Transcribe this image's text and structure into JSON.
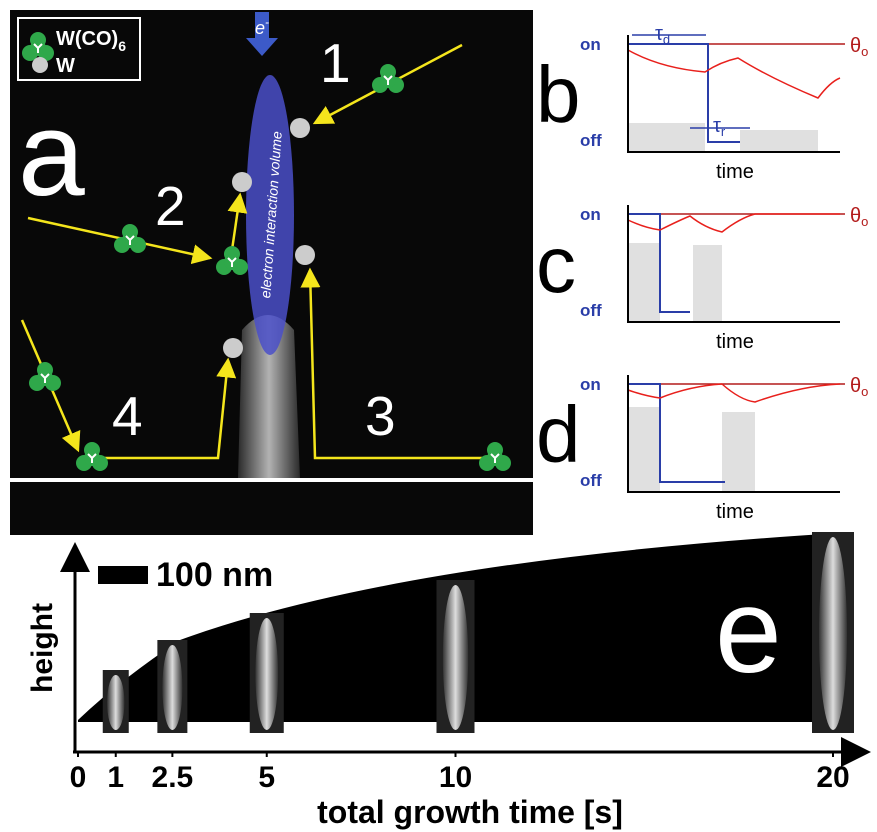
{
  "panel_a": {
    "label": "a",
    "legend": [
      {
        "label": "W(CO)",
        "subscript": "6"
      },
      {
        "label": "W"
      }
    ],
    "beam": "e",
    "beam_charge": "-",
    "volume_label": "electron interaction volume",
    "paths": [
      "1",
      "2",
      "3",
      "4"
    ]
  },
  "panels_bcd": [
    {
      "label": "b",
      "on": "on",
      "off": "off",
      "xlabel": "time",
      "theta": "θ",
      "theta_sub": "o",
      "tau_d": "τ",
      "tau_d_sub": "d",
      "tau_r": "τ",
      "tau_r_sub": "r"
    },
    {
      "label": "c",
      "on": "on",
      "off": "off",
      "xlabel": "time",
      "theta": "θ",
      "theta_sub": "o"
    },
    {
      "label": "d",
      "on": "on",
      "off": "off",
      "xlabel": "time",
      "theta": "θ",
      "theta_sub": "o"
    }
  ],
  "panel_e": {
    "label": "e",
    "scale_bar": "100 nm",
    "ylabel": "height",
    "xlabel": "total growth time [s]",
    "xlim": [
      0,
      20
    ],
    "xticks": [
      0,
      1,
      2.5,
      5,
      10,
      20
    ]
  }
}
